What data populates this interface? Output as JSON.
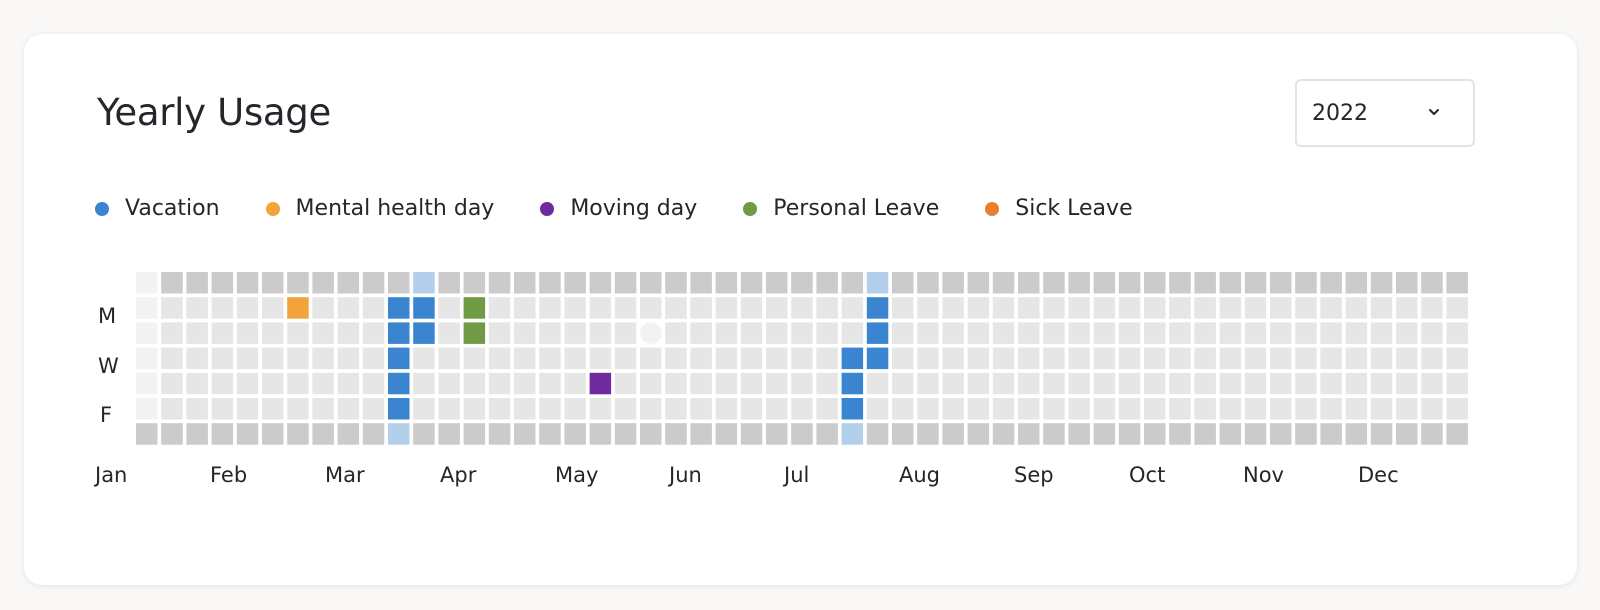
{
  "card": {
    "title": "Yearly Usage",
    "year_select": {
      "value": "2022",
      "chevron_icon": "chevron-down-icon"
    }
  },
  "legend": [
    {
      "label": "Vacation",
      "color": "#3b84d0"
    },
    {
      "label": "Mental health day",
      "color": "#f2a33a"
    },
    {
      "label": "Moving day",
      "color": "#6f2a9f"
    },
    {
      "label": "Personal Leave",
      "color": "#6f9b44"
    },
    {
      "label": "Sick Leave",
      "color": "#e97e30"
    }
  ],
  "day_labels": [
    "M",
    "W",
    "F"
  ],
  "month_labels": [
    "Jan",
    "Feb",
    "Mar",
    "Apr",
    "May",
    "Jun",
    "Jul",
    "Aug",
    "Sep",
    "Oct",
    "Nov",
    "Dec"
  ],
  "colors": {
    "weekday_empty": "#e6e6e6",
    "weekend_empty": "#cbcbcb",
    "outside_year": "#f3f3f3",
    "weekend_vacation": "#b3cfeb",
    "today_marker": "#f2f2f2"
  },
  "heatmap": {
    "weeks": 53,
    "days_per_week": 7,
    "first_week_blank_days": 6,
    "today": {
      "week": 20,
      "day": 2
    },
    "entries": [
      {
        "week": 6,
        "day": 1,
        "type": "Mental health day"
      },
      {
        "week": 10,
        "day": 1,
        "type": "Vacation"
      },
      {
        "week": 10,
        "day": 2,
        "type": "Vacation"
      },
      {
        "week": 10,
        "day": 3,
        "type": "Vacation"
      },
      {
        "week": 10,
        "day": 4,
        "type": "Vacation"
      },
      {
        "week": 10,
        "day": 5,
        "type": "Vacation"
      },
      {
        "week": 10,
        "day": 6,
        "type": "Vacation"
      },
      {
        "week": 11,
        "day": 0,
        "type": "Vacation"
      },
      {
        "week": 11,
        "day": 1,
        "type": "Vacation"
      },
      {
        "week": 11,
        "day": 2,
        "type": "Vacation"
      },
      {
        "week": 13,
        "day": 1,
        "type": "Personal Leave"
      },
      {
        "week": 13,
        "day": 2,
        "type": "Personal Leave"
      },
      {
        "week": 18,
        "day": 4,
        "type": "Moving day"
      },
      {
        "week": 28,
        "day": 3,
        "type": "Vacation"
      },
      {
        "week": 28,
        "day": 4,
        "type": "Vacation"
      },
      {
        "week": 28,
        "day": 5,
        "type": "Vacation"
      },
      {
        "week": 28,
        "day": 6,
        "type": "Vacation"
      },
      {
        "week": 29,
        "day": 0,
        "type": "Vacation"
      },
      {
        "week": 29,
        "day": 1,
        "type": "Vacation"
      },
      {
        "week": 29,
        "day": 2,
        "type": "Vacation"
      },
      {
        "week": 29,
        "day": 3,
        "type": "Vacation"
      }
    ]
  }
}
